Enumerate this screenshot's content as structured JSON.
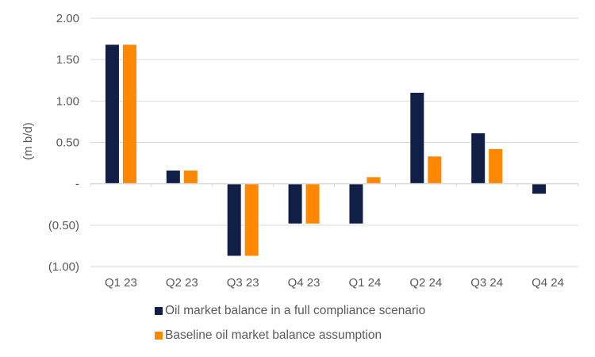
{
  "chart_data": {
    "type": "bar",
    "title": "",
    "xlabel": "",
    "ylabel": "(m b/d)",
    "ylim": [
      -1.0,
      2.0
    ],
    "yticks": [
      2.0,
      1.5,
      1.0,
      0.5,
      0.0,
      -0.5,
      -1.0
    ],
    "ytick_labels": [
      "2.00",
      "1.50",
      "1.00",
      "0.50",
      "-",
      "(0.50)",
      "(1.00)"
    ],
    "grid": true,
    "legend_position": "bottom",
    "categories": [
      "Q1 23",
      "Q2 23",
      "Q3 23",
      "Q4 23",
      "Q1 24",
      "Q2 24",
      "Q3 24",
      "Q4 24"
    ],
    "series": [
      {
        "name": "Oil market balance in a full compliance scenario",
        "color": "#111E45",
        "values": [
          1.68,
          0.16,
          -0.87,
          -0.48,
          -0.48,
          1.1,
          0.61,
          -0.12
        ]
      },
      {
        "name": "Baseline oil market balance assumption",
        "color": "#FF8800",
        "values": [
          1.68,
          0.16,
          -0.87,
          -0.48,
          0.08,
          0.33,
          0.42,
          0.0
        ]
      }
    ]
  }
}
